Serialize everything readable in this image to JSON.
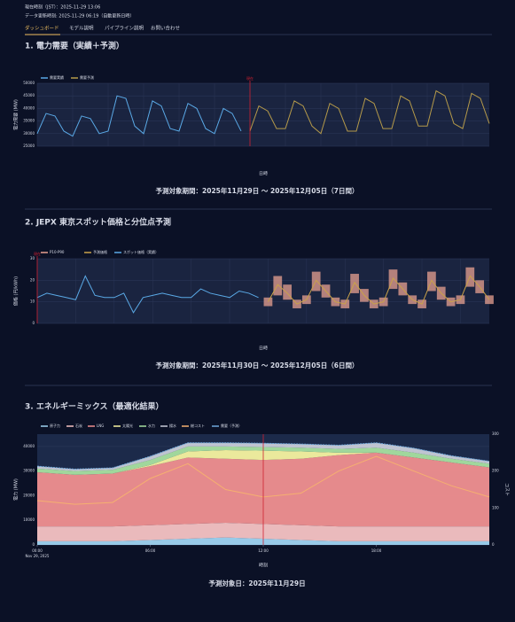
{
  "header": {
    "now": "現在時刻（JST）：2025-11-29 13:06",
    "updated": "データ更新時刻: 2025-11-29 06:19（自動更新日時）"
  },
  "nav": [
    "ダッシュボード",
    "モデル説明",
    "パイプライン説明",
    "お問い合わせ"
  ],
  "sections": [
    {
      "title": "1. 電力需要（実績＋予測）",
      "period": "予測対象期間：2025年11月29日 〜 2025年12月05日（7日間）"
    },
    {
      "title": "2. JEPX 東京スポット価格と分位点予測",
      "period": "予測対象期間：2025年11月30日 〜 2025年12月05日（6日間）"
    },
    {
      "title": "3. エネルギーミックス（最適化結果）",
      "period": "予測対象日：2025年11月29日"
    }
  ],
  "chart_data": [
    {
      "type": "line",
      "annotation": "現在",
      "x_label": "日時",
      "y_label": "電力需要 (MW)",
      "ylim": [
        25000,
        50000
      ],
      "yticks": [
        25000,
        30000,
        35000,
        40000,
        45000,
        50000
      ],
      "series": [
        {
          "name": "需要実績",
          "color": "#5aa9e6",
          "values": [
            30000,
            38000,
            37000,
            31000,
            29000,
            37000,
            36000,
            30000,
            31000,
            45000,
            44000,
            33000,
            30000,
            43000,
            41000,
            32000,
            31000,
            42000,
            40000,
            32000,
            30000,
            40000,
            38000,
            31000,
            null,
            null,
            null,
            null,
            null,
            null,
            null,
            null,
            null,
            null,
            null,
            null,
            null,
            null,
            null,
            null,
            null,
            null,
            null,
            null,
            null,
            null,
            null,
            null,
            null,
            null,
            null,
            null
          ]
        },
        {
          "name": "需要予測",
          "color": "#b59a4a",
          "values": [
            null,
            null,
            null,
            null,
            null,
            null,
            null,
            null,
            null,
            null,
            null,
            null,
            null,
            null,
            null,
            null,
            null,
            null,
            null,
            null,
            null,
            null,
            null,
            null,
            31000,
            41000,
            39000,
            32000,
            32000,
            43000,
            41000,
            33000,
            30000,
            42000,
            40000,
            31000,
            31000,
            44000,
            42000,
            32000,
            32000,
            45000,
            43000,
            33000,
            33000,
            47000,
            45000,
            34000,
            32000,
            46000,
            44000,
            34000
          ]
        }
      ]
    },
    {
      "type": "line",
      "annotation": "現在",
      "x_label": "日時",
      "y_label": "価格 (円/kWh)",
      "ylim": [
        0,
        30
      ],
      "yticks": [
        0,
        10,
        20,
        30
      ],
      "band": {
        "name": "P10-P90",
        "color": "#e8a090",
        "low": [
          null,
          null,
          null,
          null,
          null,
          null,
          null,
          null,
          null,
          null,
          null,
          null,
          null,
          null,
          null,
          null,
          null,
          null,
          null,
          null,
          null,
          null,
          null,
          null,
          8,
          13,
          11,
          7,
          9,
          15,
          12,
          8,
          7,
          14,
          10,
          7,
          8,
          16,
          13,
          9,
          7,
          15,
          11,
          8,
          9,
          17,
          14,
          9
        ],
        "high": [
          null,
          null,
          null,
          null,
          null,
          null,
          null,
          null,
          null,
          null,
          null,
          null,
          null,
          null,
          null,
          null,
          null,
          null,
          null,
          null,
          null,
          null,
          null,
          null,
          12,
          22,
          18,
          11,
          13,
          24,
          18,
          12,
          11,
          23,
          16,
          11,
          12,
          25,
          19,
          13,
          11,
          24,
          17,
          12,
          13,
          26,
          20,
          13
        ]
      },
      "series": [
        {
          "name": "予測価格",
          "color": "#c9a24a",
          "values": [
            null,
            null,
            null,
            null,
            null,
            null,
            null,
            null,
            null,
            null,
            null,
            null,
            null,
            null,
            null,
            null,
            null,
            null,
            null,
            null,
            null,
            null,
            null,
            null,
            10,
            18,
            14,
            9,
            11,
            20,
            15,
            10,
            9,
            19,
            13,
            9,
            10,
            21,
            16,
            11,
            9,
            20,
            14,
            10,
            11,
            22,
            17,
            11
          ]
        },
        {
          "name": "スポット価格（実績）",
          "color": "#5aa9e6",
          "values": [
            12,
            14,
            13,
            12,
            11,
            22,
            13,
            12,
            12,
            14,
            5,
            12,
            13,
            14,
            13,
            12,
            12,
            16,
            14,
            13,
            12,
            15,
            14,
            12,
            null,
            null,
            null,
            null,
            null,
            null,
            null,
            null,
            null,
            null,
            null,
            null,
            null,
            null,
            null,
            null,
            null,
            null,
            null,
            null,
            null,
            null,
            null,
            null
          ]
        }
      ]
    },
    {
      "type": "area",
      "x_label": "時刻",
      "x_sublabel": "Nov 29, 2025",
      "y_label": "電力 (MW)",
      "y2_label": "コスト",
      "x": [
        0,
        2,
        4,
        6,
        8,
        10,
        12,
        14,
        16,
        18,
        20,
        22,
        24
      ],
      "xlim": [
        0,
        24
      ],
      "xticks": [
        {
          "value": 0,
          "label": "00:00"
        },
        {
          "value": 6,
          "label": "06:00"
        },
        {
          "value": 12,
          "label": "12:00"
        },
        {
          "value": 18,
          "label": "18:00"
        }
      ],
      "ylim": [
        0,
        45000
      ],
      "yticks": [
        0,
        10000,
        20000,
        30000,
        40000
      ],
      "y2lim": [
        0,
        300
      ],
      "y2ticks": [
        0,
        100,
        200,
        300
      ],
      "series": [
        {
          "name": "原子力",
          "color": "#9fd3f0",
          "values": [
            1500,
            1500,
            1500,
            2000,
            2500,
            3000,
            2500,
            2000,
            1500,
            1500,
            1500,
            1500,
            1500
          ]
        },
        {
          "name": "石炭",
          "color": "#f6c2c2",
          "values": [
            6000,
            6000,
            6000,
            6000,
            6000,
            6000,
            6000,
            6000,
            6000,
            6000,
            6000,
            6000,
            6000
          ]
        },
        {
          "name": "LNG",
          "color": "#f08f8f",
          "values": [
            22000,
            21000,
            21500,
            24000,
            27000,
            26000,
            26000,
            27000,
            29000,
            30000,
            28000,
            26000,
            24000
          ]
        },
        {
          "name": "太陽光",
          "color": "#f7f3a0",
          "values": [
            0,
            0,
            0,
            500,
            2500,
            3500,
            3800,
            3000,
            1000,
            0,
            0,
            0,
            0
          ]
        },
        {
          "name": "水力",
          "color": "#a8e0a0",
          "values": [
            1500,
            1500,
            1500,
            2000,
            2000,
            1500,
            1500,
            1500,
            1500,
            2000,
            2000,
            1500,
            1500
          ]
        },
        {
          "name": "揚水",
          "color": "#c8ccd8",
          "values": [
            1000,
            800,
            800,
            1500,
            1500,
            1500,
            1500,
            1500,
            1500,
            2000,
            1800,
            1200,
            1000
          ]
        }
      ],
      "lines": [
        {
          "name": "総コスト",
          "color": "#f5b070",
          "axis": "y2",
          "values": [
            120,
            110,
            115,
            180,
            220,
            150,
            130,
            140,
            200,
            240,
            200,
            160,
            130
          ]
        },
        {
          "name": "需要（予測）",
          "color": "#6fa8dc",
          "values": [
            32000,
            30800,
            31300,
            36000,
            41500,
            41500,
            41300,
            41000,
            40500,
            41500,
            39300,
            36200,
            34000
          ]
        }
      ]
    }
  ]
}
